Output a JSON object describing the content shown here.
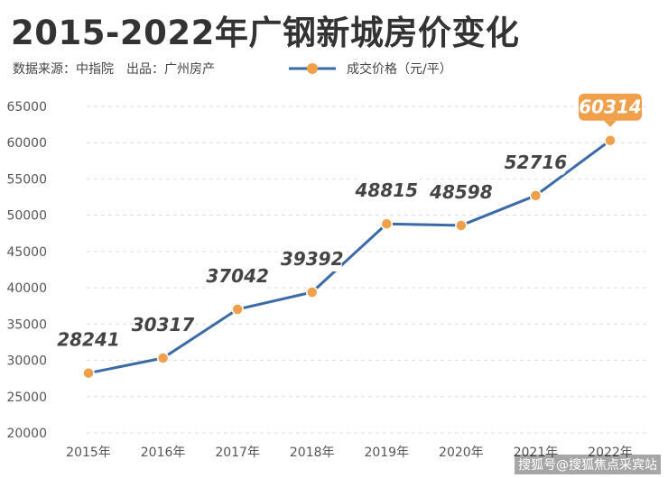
{
  "header": {
    "title": "2015-2022年广钢新城房价变化",
    "source": "数据来源：中指院",
    "publisher": "出品：广州房产"
  },
  "watermark": "搜狐号@搜狐焦点采宾站",
  "colors": {
    "line": "#3a6aa8",
    "marker": "#f0a04b",
    "grid": "#dddddd",
    "label_text": "#444444",
    "highlight_badge": "#f0a04b",
    "title": "#333333"
  },
  "chart_data": {
    "type": "line",
    "title": "2015-2022年广钢新城房价变化",
    "xlabel": "",
    "ylabel": "",
    "categories": [
      "2015年",
      "2016年",
      "2017年",
      "2018年",
      "2019年",
      "2020年",
      "2021年",
      "2022年"
    ],
    "series": [
      {
        "name": "成交价格（元/平）",
        "values": [
          28241,
          30317,
          37042,
          39392,
          48815,
          48598,
          52716,
          60314
        ]
      }
    ],
    "data_labels": [
      "28241",
      "30317",
      "37042",
      "39392",
      "48815",
      "48598",
      "52716",
      "60314"
    ],
    "ylim": [
      20000,
      65000
    ],
    "yticks": [
      20000,
      25000,
      30000,
      35000,
      40000,
      45000,
      50000,
      55000,
      60000,
      65000
    ],
    "ytick_labels": [
      "20000",
      "25000",
      "30000",
      "35000",
      "40000",
      "45000",
      "50000",
      "55000",
      "60000",
      "65000"
    ],
    "grid": "horizontal dashed",
    "legend": "top"
  }
}
